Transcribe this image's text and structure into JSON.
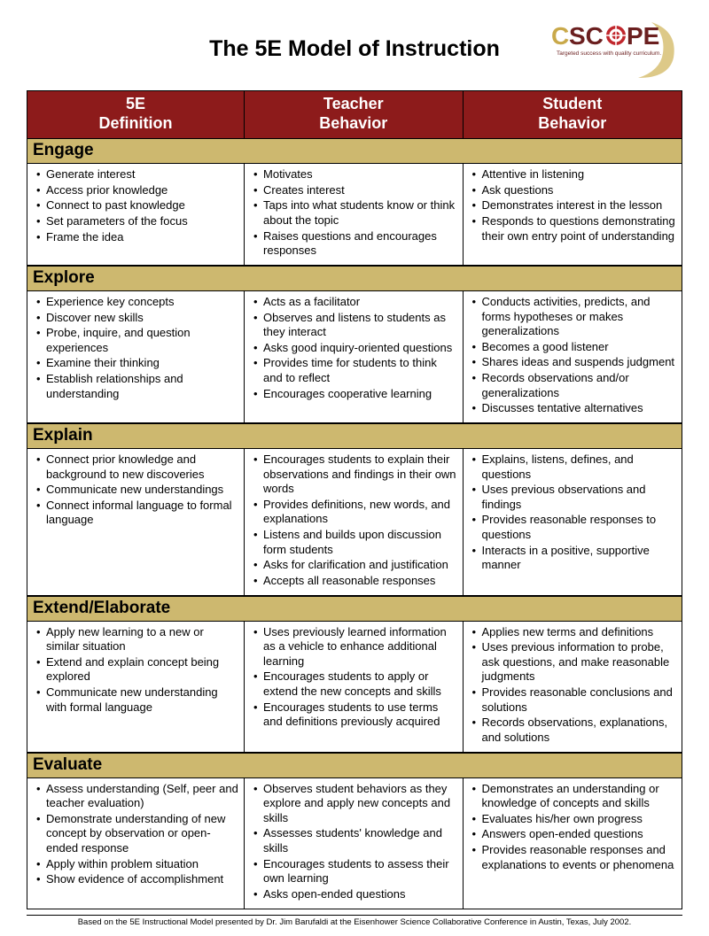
{
  "title": "The 5E Model of Instruction",
  "logo": {
    "brand_text_1": "C",
    "brand_text_2": "SC",
    "brand_text_3": "PE",
    "tagline": "Targeted success with quality curriculum.",
    "color_c": "#c9a94a",
    "color_scope": "#6b1f1f",
    "color_tagline": "#6b1f1f",
    "swoosh_color": "#d7c073",
    "target_red": "#c1272d"
  },
  "colors": {
    "header_bg": "#8d1b1b",
    "header_fg": "#ffffff",
    "section_bg": "#cdb86f",
    "section_fg": "#000000",
    "border": "#000000",
    "body_bg": "#ffffff",
    "text": "#000000"
  },
  "columns": [
    {
      "line1": "5E",
      "line2": "Definition"
    },
    {
      "line1": "Teacher",
      "line2": "Behavior"
    },
    {
      "line1": "Student",
      "line2": "Behavior"
    }
  ],
  "sections": [
    {
      "name": "Engage",
      "cells": [
        [
          "Generate interest",
          "Access prior knowledge",
          "Connect to past knowledge",
          "Set parameters of the focus",
          "Frame the idea"
        ],
        [
          "Motivates",
          "Creates interest",
          "Taps into what students know or think about the topic",
          "Raises questions and encourages responses"
        ],
        [
          "Attentive in listening",
          "Ask questions",
          "Demonstrates interest in the lesson",
          "Responds to questions demonstrating their own entry point of understanding"
        ]
      ]
    },
    {
      "name": "Explore",
      "cells": [
        [
          "Experience key concepts",
          "Discover new skills",
          "Probe, inquire, and question experiences",
          "Examine their thinking",
          "Establish relationships and understanding"
        ],
        [
          "Acts as a facilitator",
          "Observes and listens to students as they interact",
          "Asks good inquiry-oriented questions",
          "Provides time for students to think and to reflect",
          "Encourages cooperative learning"
        ],
        [
          "Conducts activities, predicts, and forms hypotheses or makes generalizations",
          "Becomes a good listener",
          "Shares ideas and suspends judgment",
          "Records observations and/or generalizations",
          "Discusses tentative alternatives"
        ]
      ]
    },
    {
      "name": "Explain",
      "cells": [
        [
          "Connect prior knowledge and background to new discoveries",
          "Communicate new understandings",
          "Connect informal language to formal language"
        ],
        [
          "Encourages students to explain their observations and findings in their own words",
          "Provides definitions, new words, and explanations",
          "Listens and builds upon discussion form students",
          "Asks for clarification and justification",
          "Accepts all reasonable responses"
        ],
        [
          "Explains, listens, defines, and questions",
          "Uses previous observations and findings",
          "Provides reasonable responses to questions",
          "Interacts in a positive, supportive manner"
        ]
      ]
    },
    {
      "name": "Extend/Elaborate",
      "cells": [
        [
          "Apply new learning to a new or similar situation",
          "Extend and explain concept being explored",
          "Communicate new understanding with formal language"
        ],
        [
          "Uses previously learned information as a vehicle to enhance additional learning",
          "Encourages students to apply or extend the new concepts and skills",
          "Encourages students to use terms and definitions previously acquired"
        ],
        [
          "Applies new terms and definitions",
          "Uses previous information to probe, ask questions, and make reasonable judgments",
          "Provides reasonable conclusions and solutions",
          "Records observations, explanations, and solutions"
        ]
      ]
    },
    {
      "name": "Evaluate",
      "cells": [
        [
          "Assess understanding (Self, peer and teacher evaluation)",
          "Demonstrate understanding of new concept by observation or open-ended response",
          "Apply within problem situation",
          "Show evidence of accomplishment"
        ],
        [
          "Observes student behaviors as they explore and apply new concepts and skills",
          "Assesses students' knowledge and skills",
          "Encourages students to assess their own learning",
          "Asks open-ended questions"
        ],
        [
          "Demonstrates an understanding or knowledge of concepts and skills",
          "Evaluates his/her own progress",
          "Answers open-ended questions",
          "Provides reasonable responses and explanations to events or phenomena"
        ]
      ]
    }
  ],
  "footer": "Based on the 5E Instructional Model presented by Dr. Jim Barufaldi at the Eisenhower Science Collaborative Conference in Austin, Texas, July 2002."
}
